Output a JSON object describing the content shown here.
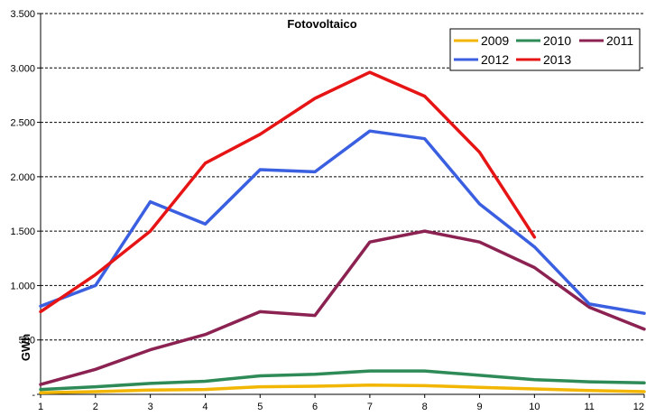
{
  "chart_data": {
    "type": "line",
    "title": "Fotovoltaico",
    "xlabel": "",
    "ylabel": "GWh",
    "x": [
      1,
      2,
      3,
      4,
      5,
      6,
      7,
      8,
      9,
      10,
      11,
      12
    ],
    "xlim": [
      1,
      12
    ],
    "ylim": [
      0,
      3500
    ],
    "yticks": [
      0,
      500,
      1000,
      1500,
      2000,
      2500,
      3000,
      3500
    ],
    "ytick_labels": [
      "-",
      "500",
      "1.000",
      "1.500",
      "2.000",
      "2.500",
      "3.000",
      "3.500"
    ],
    "xtick_labels": [
      "1",
      "2",
      "3",
      "4",
      "5",
      "6",
      "7",
      "8",
      "9",
      "10",
      "11",
      "12"
    ],
    "grid": "horizontal dashed",
    "legend_position": "top-right",
    "series": [
      {
        "name": "2009",
        "color": "#F2B600",
        "values": [
          15,
          25,
          40,
          45,
          70,
          75,
          85,
          80,
          65,
          50,
          35,
          25
        ]
      },
      {
        "name": "2010",
        "color": "#2E8B57",
        "values": [
          45,
          70,
          100,
          120,
          170,
          185,
          215,
          215,
          175,
          135,
          115,
          105
        ]
      },
      {
        "name": "2011",
        "color": "#8B2252",
        "values": [
          90,
          230,
          410,
          550,
          760,
          725,
          1400,
          1500,
          1400,
          1165,
          800,
          600
        ]
      },
      {
        "name": "2012",
        "color": "#3A5FE0",
        "values": [
          810,
          1000,
          1770,
          1565,
          2065,
          2045,
          2420,
          2350,
          1750,
          1355,
          830,
          745
        ]
      },
      {
        "name": "2013",
        "color": "#E61414",
        "values": [
          760,
          1100,
          1500,
          2125,
          2390,
          2720,
          2960,
          2740,
          2225,
          1445,
          null,
          null
        ]
      }
    ]
  }
}
